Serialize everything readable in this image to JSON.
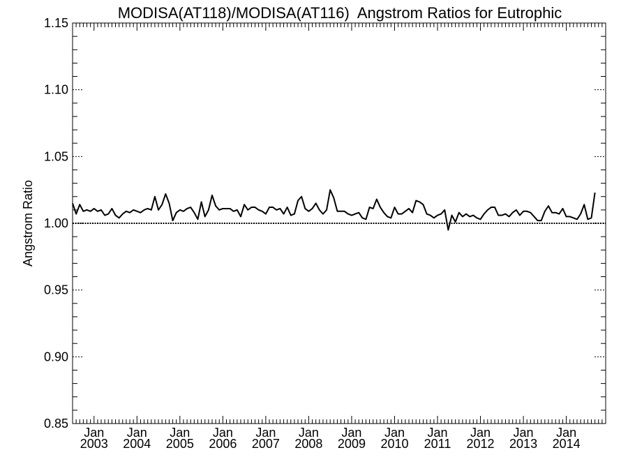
{
  "chart_data": {
    "type": "line",
    "title": "MODISA(AT118)/MODISA(AT116)  Angstrom Ratios for Eutrophic",
    "xlabel": "",
    "ylabel": "Angstrom Ratio",
    "ylim": [
      0.85,
      1.15
    ],
    "xlim": [
      "2002-07",
      "2014-12"
    ],
    "grid": false,
    "y_ticks": [
      "0.85",
      "0.90",
      "0.95",
      "1.00",
      "1.05",
      "1.10",
      "1.15"
    ],
    "x_ticks": [
      {
        "month": "Jan",
        "year": "2003"
      },
      {
        "month": "Jan",
        "year": "2004"
      },
      {
        "month": "Jan",
        "year": "2005"
      },
      {
        "month": "Jan",
        "year": "2006"
      },
      {
        "month": "Jan",
        "year": "2007"
      },
      {
        "month": "Jan",
        "year": "2008"
      },
      {
        "month": "Jan",
        "year": "2009"
      },
      {
        "month": "Jan",
        "year": "2010"
      },
      {
        "month": "Jan",
        "year": "2011"
      },
      {
        "month": "Jan",
        "year": "2012"
      },
      {
        "month": "Jan",
        "year": "2013"
      },
      {
        "month": "Jan",
        "year": "2014"
      }
    ],
    "reference_line": {
      "y": 1.0,
      "style": "dotted"
    },
    "series": [
      {
        "start": "2002-07",
        "frequency": "monthly",
        "values": [
          1.015,
          1.007,
          1.014,
          1.009,
          1.01,
          1.009,
          1.011,
          1.009,
          1.01,
          1.006,
          1.007,
          1.011,
          1.006,
          1.004,
          1.007,
          1.009,
          1.008,
          1.01,
          1.009,
          1.008,
          1.01,
          1.011,
          1.01,
          1.02,
          1.01,
          1.014,
          1.022,
          1.015,
          1.002,
          1.008,
          1.01,
          1.009,
          1.011,
          1.012,
          1.008,
          1.003,
          1.016,
          1.005,
          1.01,
          1.021,
          1.013,
          1.01,
          1.011,
          1.011,
          1.011,
          1.009,
          1.01,
          1.005,
          1.014,
          1.01,
          1.012,
          1.012,
          1.01,
          1.009,
          1.007,
          1.012,
          1.012,
          1.01,
          1.011,
          1.007,
          1.012,
          1.006,
          1.007,
          1.017,
          1.02,
          1.011,
          1.009,
          1.011,
          1.015,
          1.01,
          1.007,
          1.01,
          1.025,
          1.019,
          1.009,
          1.009,
          1.009,
          1.007,
          1.006,
          1.007,
          1.008,
          1.004,
          1.003,
          1.012,
          1.011,
          1.018,
          1.012,
          1.008,
          1.005,
          1.004,
          1.012,
          1.007,
          1.007,
          1.009,
          1.011,
          1.008,
          1.017,
          1.016,
          1.014,
          1.007,
          1.006,
          1.004,
          1.006,
          1.007,
          1.01,
          0.995,
          1.006,
          1.001,
          1.008,
          1.005,
          1.007,
          1.005,
          1.006,
          1.004,
          1.003,
          1.007,
          1.01,
          1.012,
          1.012,
          1.006,
          1.006,
          1.007,
          1.005,
          1.008,
          1.01,
          1.006,
          1.009,
          1.009,
          1.008,
          1.005,
          1.002,
          1.002,
          1.009,
          1.013,
          1.008,
          1.008,
          1.007,
          1.011,
          1.005,
          1.005,
          1.004,
          1.003,
          1.007,
          1.014,
          1.003,
          1.004,
          1.023
        ]
      }
    ]
  }
}
